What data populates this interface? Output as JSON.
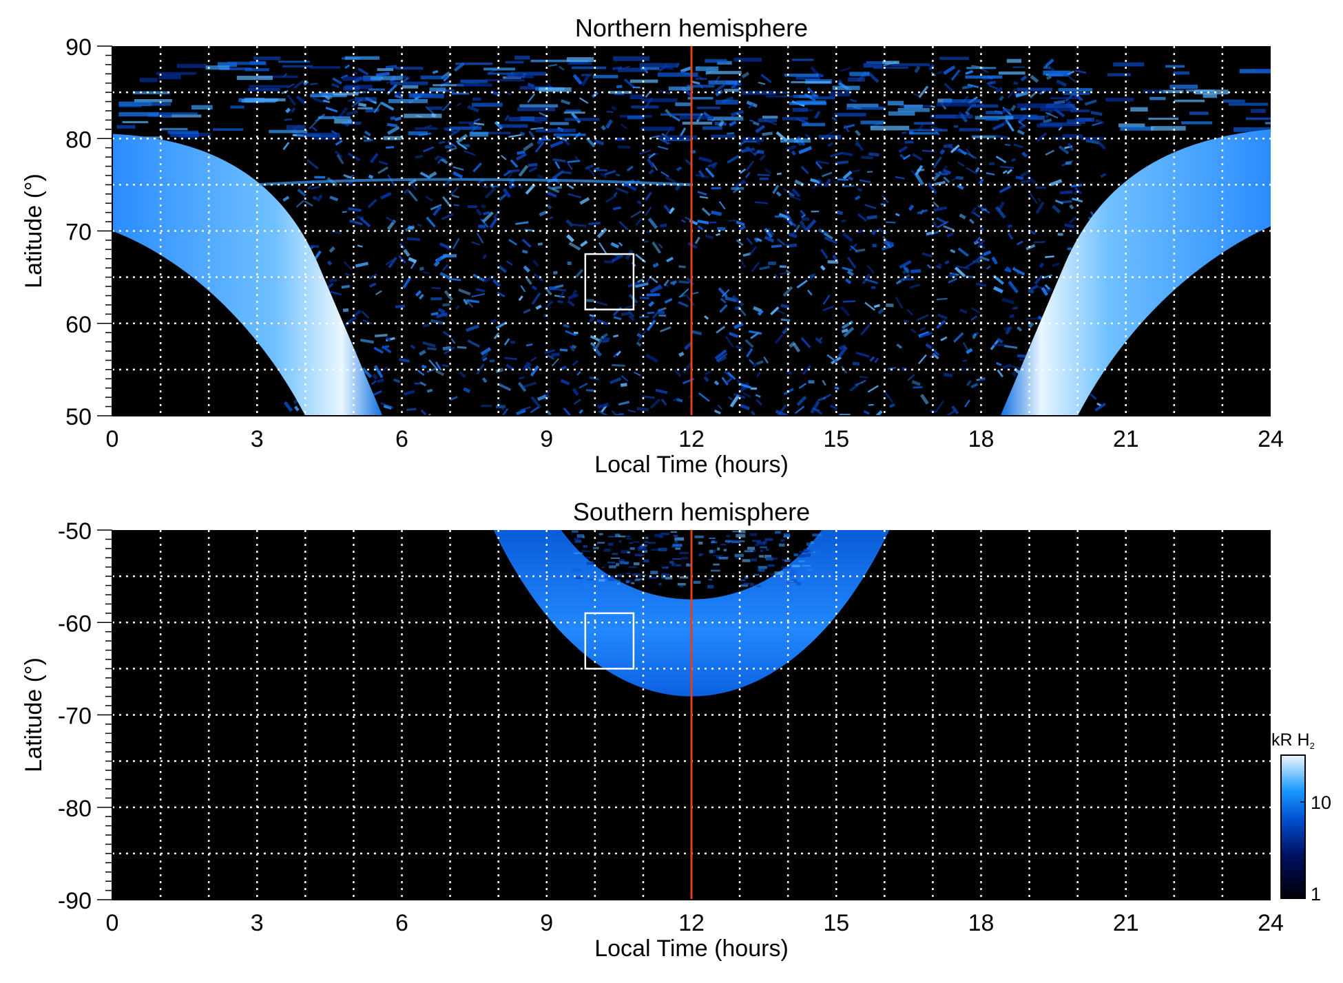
{
  "chart_data": [
    {
      "type": "heatmap",
      "title": "Northern hemisphere",
      "xlabel": "Local Time (hours)",
      "ylabel": "Latitude (°)",
      "xlim": [
        0,
        24
      ],
      "ylim": [
        50,
        90
      ],
      "xticks": [
        "0",
        "3",
        "6",
        "9",
        "12",
        "15",
        "18",
        "21",
        "24"
      ],
      "yticks": [
        "50",
        "60",
        "70",
        "80",
        "90"
      ],
      "grid": true,
      "grid_x_step": 1,
      "grid_y_step": 5,
      "marker_line_x": 12,
      "box": {
        "x": [
          9.8,
          10.8
        ],
        "y": [
          61.5,
          67.5
        ]
      },
      "features": "auroral oval: dawn arc from LT 0 (lat ~75) to LT ~5 (lat 50); dusk arc from LT ~19 (lat 50) to LT 24 (lat ~75); speckled emission between"
    },
    {
      "type": "heatmap",
      "title": "Southern hemisphere",
      "xlabel": "Local Time (hours)",
      "ylabel": "Latitude (°)",
      "xlim": [
        0,
        24
      ],
      "ylim": [
        -90,
        -50
      ],
      "xticks": [
        "0",
        "3",
        "6",
        "9",
        "12",
        "15",
        "18",
        "21",
        "24"
      ],
      "yticks": [
        "-90",
        "-80",
        "-70",
        "-60",
        "-50"
      ],
      "grid": true,
      "grid_x_step": 1,
      "grid_y_step": 5,
      "marker_line_x": 12,
      "box": {
        "x": [
          9.8,
          10.8
        ],
        "y": [
          -65,
          -59
        ]
      },
      "features": "auroral arc from LT ~8 to ~16, equatorward edge ~-68 at noon"
    }
  ],
  "colorbar": {
    "label": "kR H",
    "label_sub": "2",
    "ticks": [
      "1",
      "10"
    ],
    "range": [
      1,
      30
    ],
    "scale": "log"
  },
  "colors": {
    "marker_line": "#e0401a",
    "background": "#000000",
    "grid": "#ffffff"
  }
}
